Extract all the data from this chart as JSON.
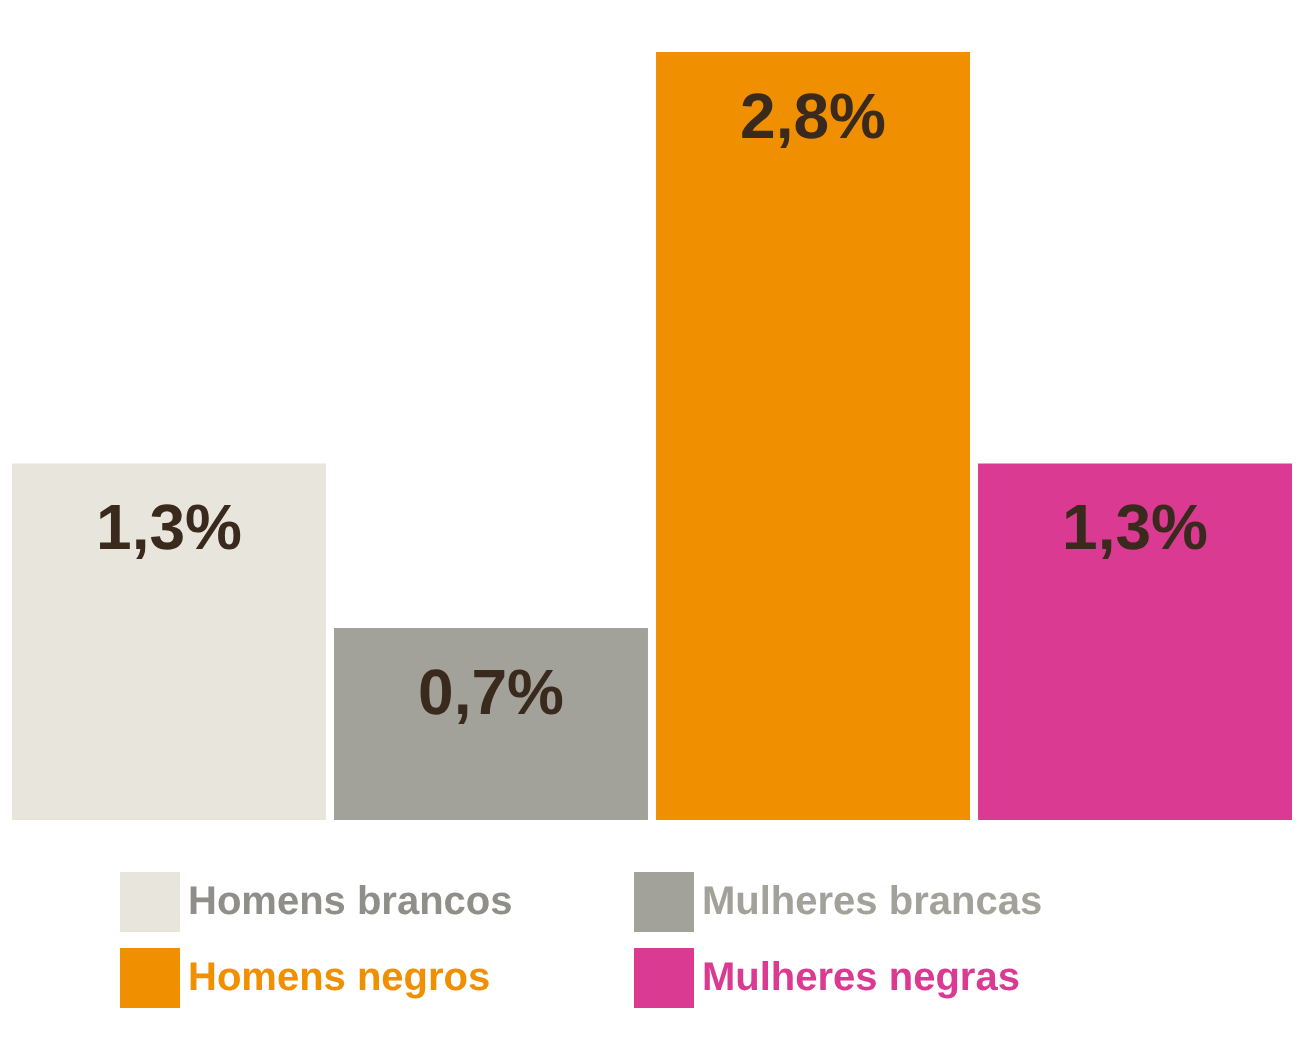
{
  "chart_data": {
    "type": "bar",
    "categories": [
      null,
      null,
      null,
      null
    ],
    "series": [
      {
        "name": "Homens brancos",
        "color": "#e8e6dc",
        "values": [
          1.3,
          null,
          null,
          null
        ],
        "value_labels": [
          "1,3%",
          null,
          null,
          null
        ]
      },
      {
        "name": "Homens negros",
        "color": "#f08f00",
        "values": [
          null,
          null,
          2.8,
          null
        ],
        "value_labels": [
          null,
          null,
          "2,8%",
          null
        ]
      },
      {
        "name": "Mulheres brancas",
        "color": "#a3a29a",
        "values": [
          null,
          0.7,
          null,
          null
        ],
        "value_labels": [
          null,
          "0,7%",
          null,
          null
        ]
      },
      {
        "name": "Mulheres negras",
        "color": "#db3a93",
        "values": [
          null,
          null,
          null,
          1.3
        ],
        "value_labels": [
          null,
          null,
          null,
          "1,3%"
        ]
      }
    ],
    "stacked": true,
    "legend": "bottom"
  }
}
